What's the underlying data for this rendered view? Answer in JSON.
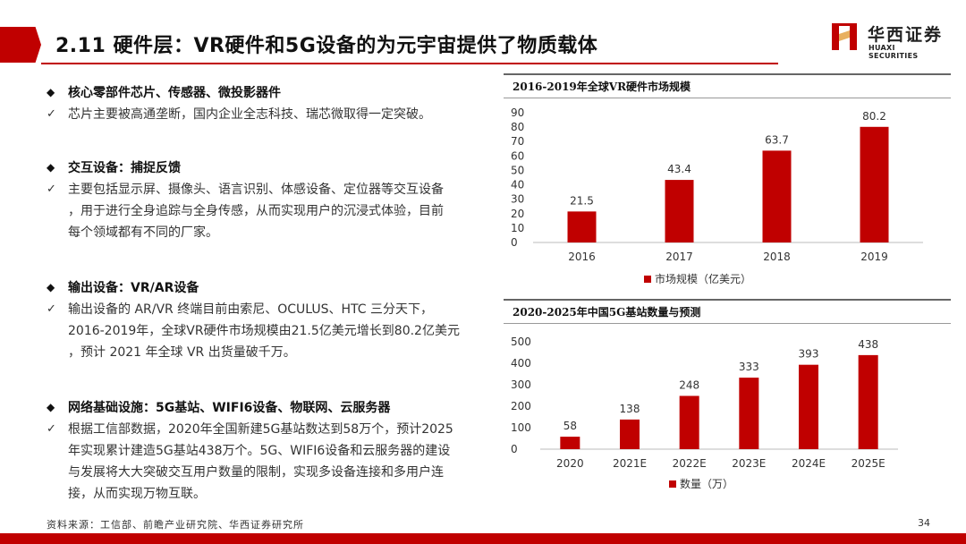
{
  "title": "2.11 硬件层：VR硬件和5G设备的为元宇宙提供了物质载体",
  "logo": {
    "cn": "华西证券",
    "en": "HUAXI SECURITIES"
  },
  "colors": {
    "accent": "#c00000"
  },
  "sections": [
    {
      "heading": "核心零部件芯片、传感器、微投影器件",
      "lines": [
        "芯片主要被高通垄断，国内企业全志科技、瑞芯微取得一定突破。"
      ]
    },
    {
      "heading": "交互设备：捕捉反馈",
      "lines": [
        "主要包括显示屏、摄像头、语言识别、体感设备、定位器等交互设备",
        "，用于进行全身追踪与全身传感，从而实现用户的沉浸式体验，目前",
        "每个领域都有不同的厂家。"
      ]
    },
    {
      "heading": "输出设备：VR/AR设备",
      "lines": [
        "输出设备的 AR/VR 终端目前由索尼、OCULUS、HTC 三分天下，",
        "2016-2019年，全球VR硬件市场规模由21.5亿美元增长到80.2亿美元",
        "，预计 2021 年全球 VR 出货量破千万。"
      ]
    },
    {
      "heading": "网络基础设施：5G基站、WIFI6设备、物联网、云服务器",
      "lines": [
        "根据工信部数据，2020年全国新建5G基站数达到58万个，预计2025",
        "年实现累计建造5G基站438万个。5G、WIFI6设备和云服务器的建设",
        "与发展将大大突破交互用户数量的限制，实现多设备连接和多用户连",
        "接，从而实现万物互联。"
      ]
    }
  ],
  "bullet_glyphs": {
    "diamond": "◆",
    "check": "✓"
  },
  "chart_data": [
    {
      "type": "bar",
      "title": "2016-2019年全球VR硬件市场规模",
      "categories": [
        "2016",
        "2017",
        "2018",
        "2019"
      ],
      "values": [
        21.5,
        43.4,
        63.7,
        80.2
      ],
      "value_labels": [
        "21.5",
        "43.4",
        "63.7",
        "80.2"
      ],
      "yticks": [
        "0",
        "10",
        "20",
        "30",
        "40",
        "50",
        "60",
        "70",
        "80",
        "90"
      ],
      "ylim": [
        0,
        90
      ],
      "legend": "市场规模（亿美元）",
      "legend_position": "bottom"
    },
    {
      "type": "bar",
      "title": "2020-2025年中国5G基站数量与预测",
      "categories": [
        "2020",
        "2021E",
        "2022E",
        "2023E",
        "2024E",
        "2025E"
      ],
      "values": [
        58,
        138,
        248,
        333,
        393,
        438
      ],
      "value_labels": [
        "58",
        "138",
        "248",
        "333",
        "393",
        "438"
      ],
      "yticks": [
        "0",
        "100",
        "200",
        "300",
        "400",
        "500"
      ],
      "ylim": [
        0,
        500
      ],
      "legend": "数量（万）",
      "legend_position": "bottom"
    }
  ],
  "footer": {
    "source": "资料来源：工信部、前瞻产业研究院、华西证券研究所",
    "page": "34"
  }
}
